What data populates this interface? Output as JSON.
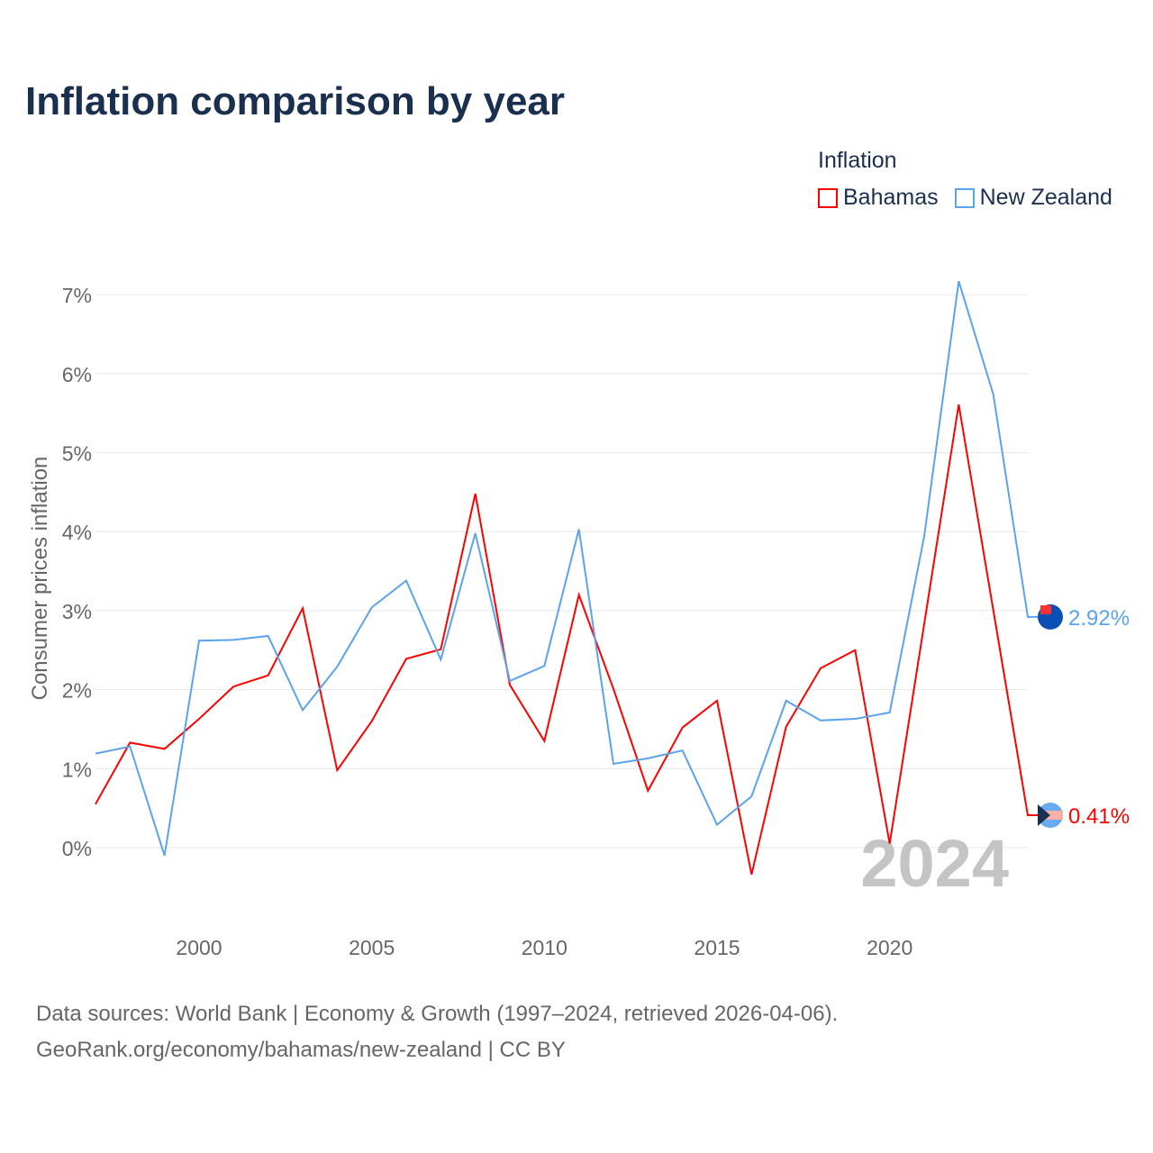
{
  "title": "Inflation comparison by year",
  "legend": {
    "title": "Inflation",
    "items": [
      "Bahamas",
      "New Zealand"
    ]
  },
  "colors": {
    "Bahamas": "#ff0000",
    "New Zealand": "#5ba3ea",
    "grid": "#e6e6e6",
    "axis_text": "#666666",
    "watermark": "#c4c4c4"
  },
  "watermark_year": "2024",
  "footer": {
    "line1": "Data sources: World Bank | Economy & Growth (1997–2024, retrieved 2026-04-06).",
    "line2": "GeoRank.org/economy/bahamas/new-zealand | CC BY"
  },
  "chart_data": {
    "type": "line",
    "title": "Inflation comparison by year",
    "xlabel": "",
    "ylabel": "Consumer prices inflation",
    "xlim": [
      1997,
      2024
    ],
    "ylim": [
      -1,
      7.5
    ],
    "x_ticks": [
      2000,
      2005,
      2010,
      2015,
      2020
    ],
    "x_tick_labels": [
      "2000",
      "2005",
      "2010",
      "2015",
      "2020"
    ],
    "y_ticks": [
      0,
      1,
      2,
      3,
      4,
      5,
      6,
      7
    ],
    "y_tick_labels": [
      "0%",
      "1%",
      "2%",
      "3%",
      "4%",
      "5%",
      "6%",
      "7%"
    ],
    "grid": true,
    "legend_position": "top-right",
    "x": [
      1997,
      1998,
      1999,
      2000,
      2001,
      2002,
      2003,
      2004,
      2005,
      2006,
      2007,
      2008,
      2009,
      2010,
      2011,
      2012,
      2013,
      2014,
      2015,
      2016,
      2017,
      2018,
      2019,
      2020,
      2021,
      2022,
      2023,
      2024
    ],
    "series": [
      {
        "name": "Bahamas",
        "end_label": "0.41%",
        "values": [
          0.55,
          1.33,
          1.25,
          1.63,
          2.04,
          2.18,
          3.03,
          0.98,
          1.6,
          2.39,
          2.51,
          4.48,
          2.06,
          1.35,
          3.2,
          2.01,
          0.72,
          1.52,
          1.86,
          -0.34,
          1.53,
          2.27,
          2.5,
          0.05,
          2.83,
          5.61,
          3.01,
          0.41
        ]
      },
      {
        "name": "New Zealand",
        "end_label": "2.92%",
        "values": [
          1.19,
          1.28,
          -0.1,
          2.62,
          2.63,
          2.68,
          1.74,
          2.29,
          3.04,
          3.38,
          2.38,
          3.98,
          2.11,
          2.3,
          4.03,
          1.06,
          1.13,
          1.23,
          0.29,
          0.65,
          1.86,
          1.61,
          1.63,
          1.71,
          3.94,
          7.17,
          5.74,
          2.92
        ]
      }
    ]
  }
}
